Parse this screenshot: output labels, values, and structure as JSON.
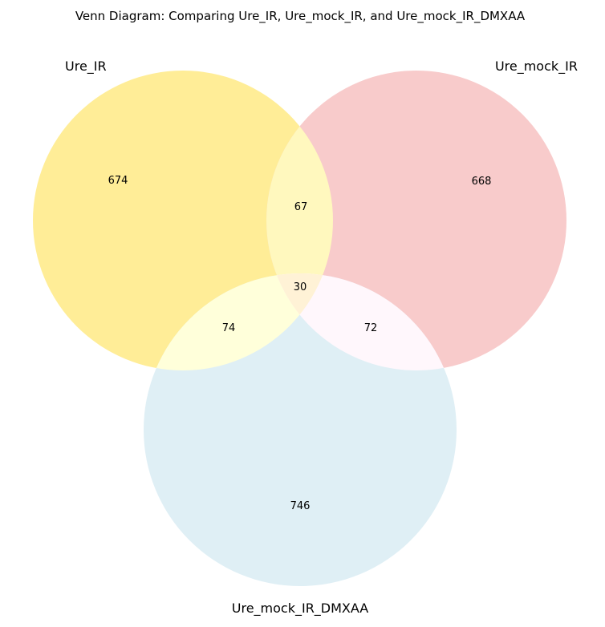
{
  "title": "Venn Diagram: Comparing Ure_IR, Ure_mock_IR, and Ure_mock_IR_DMXAA",
  "sets": {
    "a": {
      "label": "Ure_IR",
      "color": "#FFED97"
    },
    "b": {
      "label": "Ure_mock_IR",
      "color": "#F8CBCB"
    },
    "c": {
      "label": "Ure_mock_IR_DMXAA",
      "color": "#DFEFF5"
    }
  },
  "regions": {
    "a_only": "674",
    "b_only": "668",
    "c_only": "746",
    "ab": "67",
    "ac": "74",
    "bc": "72",
    "abc": "30"
  },
  "region_colors": {
    "ab": "#FFF8BE",
    "ac": "#FFFFDA",
    "bc": "#FFF7FC",
    "abc": "#FFF2D6"
  }
}
